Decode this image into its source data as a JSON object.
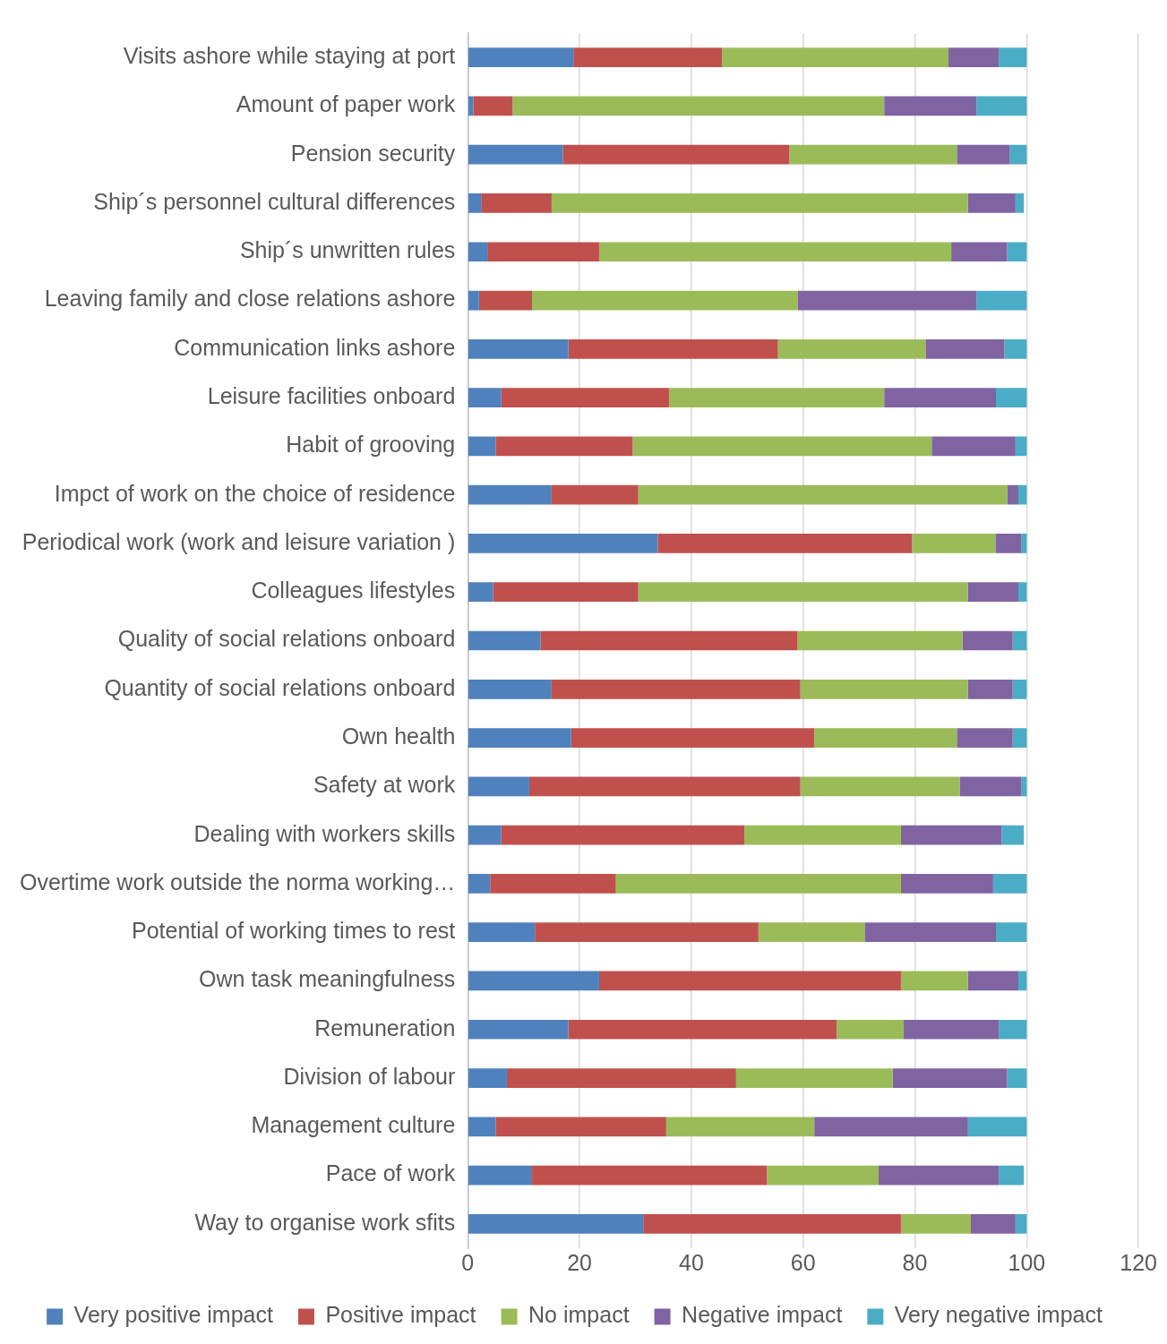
{
  "chart_data": {
    "type": "bar",
    "orientation": "horizontal",
    "stacked": true,
    "categories": [
      "Visits ashore while staying at port",
      "Amount of paper work",
      "Pension security",
      "Ship´s personnel cultural differences",
      "Ship´s unwritten rules",
      "Leaving family and close relations ashore",
      "Communication links ashore",
      "Leisure facilities onboard",
      "Habit of grooving",
      "Impct of work on the choice of residence",
      "Periodical work (work and leisure variation )",
      "Colleagues lifestyles",
      "Quality of social relations onboard",
      "Quantity of social relations onboard",
      "Own health",
      "Safety at work",
      "Dealing with workers skills",
      "Overtime work outside the norma working…",
      "Potential of working times to rest",
      "Own task meaningfulness",
      "Remuneration",
      "Division of labour",
      "Management culture",
      "Pace of work",
      "Way to organise work sfits"
    ],
    "series": [
      {
        "name": "Very positive impact",
        "color": "#4f81bd",
        "values": [
          19,
          1,
          17,
          2.5,
          3.5,
          2,
          18,
          6,
          5,
          15,
          34,
          4.5,
          13,
          15,
          18.5,
          11,
          6,
          4,
          12,
          23.5,
          18,
          7,
          5,
          11.5,
          31.5
        ]
      },
      {
        "name": "Positive impact",
        "color": "#c0504d",
        "values": [
          26.5,
          7,
          40.5,
          12.5,
          20,
          9.5,
          37.5,
          30,
          24.5,
          15.5,
          45.5,
          26,
          46,
          44.5,
          43.5,
          48.5,
          43.5,
          22.5,
          40,
          54,
          48,
          41,
          30.5,
          42,
          46
        ]
      },
      {
        "name": "No impact",
        "color": "#9bbb59",
        "values": [
          40.5,
          66.5,
          30,
          74.5,
          63,
          47.5,
          26.5,
          38.5,
          53.5,
          66,
          15,
          59,
          29.5,
          30,
          25.5,
          28.5,
          28,
          51,
          19,
          12,
          12,
          28,
          26.5,
          20,
          12.5
        ]
      },
      {
        "name": "Negative impact",
        "color": "#8064a2",
        "values": [
          9,
          16.5,
          9.5,
          8.5,
          10,
          32,
          14,
          20,
          15,
          2,
          4.5,
          9,
          9,
          8,
          10,
          11,
          18,
          16.5,
          23.5,
          9,
          17,
          20.5,
          27.5,
          21.5,
          8
        ]
      },
      {
        "name": "Very negative impact",
        "color": "#4bacc6",
        "values": [
          5,
          9,
          3,
          1.5,
          3.5,
          9,
          4,
          5.5,
          2,
          1.5,
          1,
          1.5,
          2.5,
          2.5,
          2.5,
          1,
          4,
          6,
          5.5,
          1.5,
          5,
          3.5,
          10.5,
          4.5,
          2
        ]
      }
    ],
    "xlim": [
      0,
      120
    ],
    "xticks": [
      0,
      20,
      40,
      60,
      80,
      100,
      120
    ],
    "grid": "x",
    "legend": "bottom"
  }
}
